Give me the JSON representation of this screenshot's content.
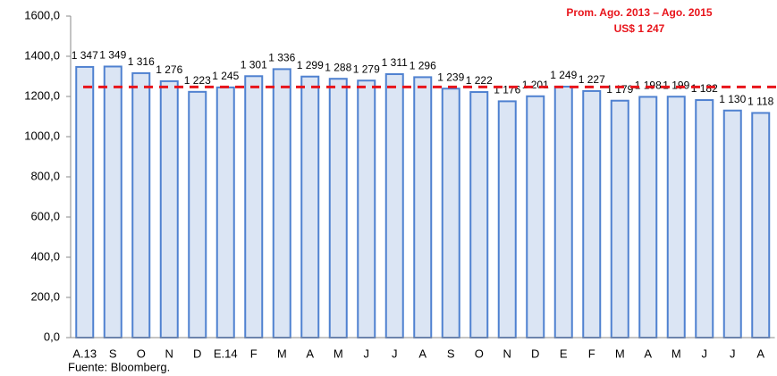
{
  "chart_data": {
    "type": "bar",
    "categories": [
      "A.13",
      "S",
      "O",
      "N",
      "D",
      "E.14",
      "F",
      "M",
      "A",
      "M",
      "J",
      "J",
      "A",
      "S",
      "O",
      "N",
      "D",
      "E",
      "F",
      "M",
      "A",
      "M",
      "J",
      "J",
      "A"
    ],
    "values": [
      1347,
      1349,
      1316,
      1276,
      1223,
      1245,
      1301,
      1336,
      1299,
      1288,
      1279,
      1311,
      1296,
      1239,
      1222,
      1176,
      1201,
      1249,
      1227,
      1179,
      1198,
      1199,
      1182,
      1130,
      1118
    ],
    "value_labels": [
      "1 347",
      "1 349",
      "1 316",
      "1 276",
      "1 223",
      "1 245",
      "1 301",
      "1 336",
      "1 299",
      "1 288",
      "1 279",
      "1 311",
      "1 296",
      "1 239",
      "1 222",
      "1 176",
      "1 201",
      "1 249",
      "1 227",
      "1 179",
      "1 198",
      "1 199",
      "1 182",
      "1 130",
      "1 118"
    ],
    "color": "#dbe5f4",
    "edge_color": "#4f81d0",
    "ylim": [
      0,
      1600
    ],
    "yticks": [
      {
        "value": 0,
        "label": "0,0"
      },
      {
        "value": 200,
        "label": "200,0"
      },
      {
        "value": 400,
        "label": "400,0"
      },
      {
        "value": 600,
        "label": "600,0"
      },
      {
        "value": 800,
        "label": "800,0"
      },
      {
        "value": 1000,
        "label": "1000,0"
      },
      {
        "value": 1200,
        "label": "1200,0"
      },
      {
        "value": 1400,
        "label": "1400,0"
      },
      {
        "value": 1600,
        "label": "1600,0"
      }
    ],
    "reference_line": {
      "value": 1247,
      "color": "#e8141b"
    },
    "annotations": [
      "Prom. Ago. 2013 – Ago. 2015",
      "US$ 1 247"
    ],
    "source": "Fuente: Bloomberg."
  }
}
